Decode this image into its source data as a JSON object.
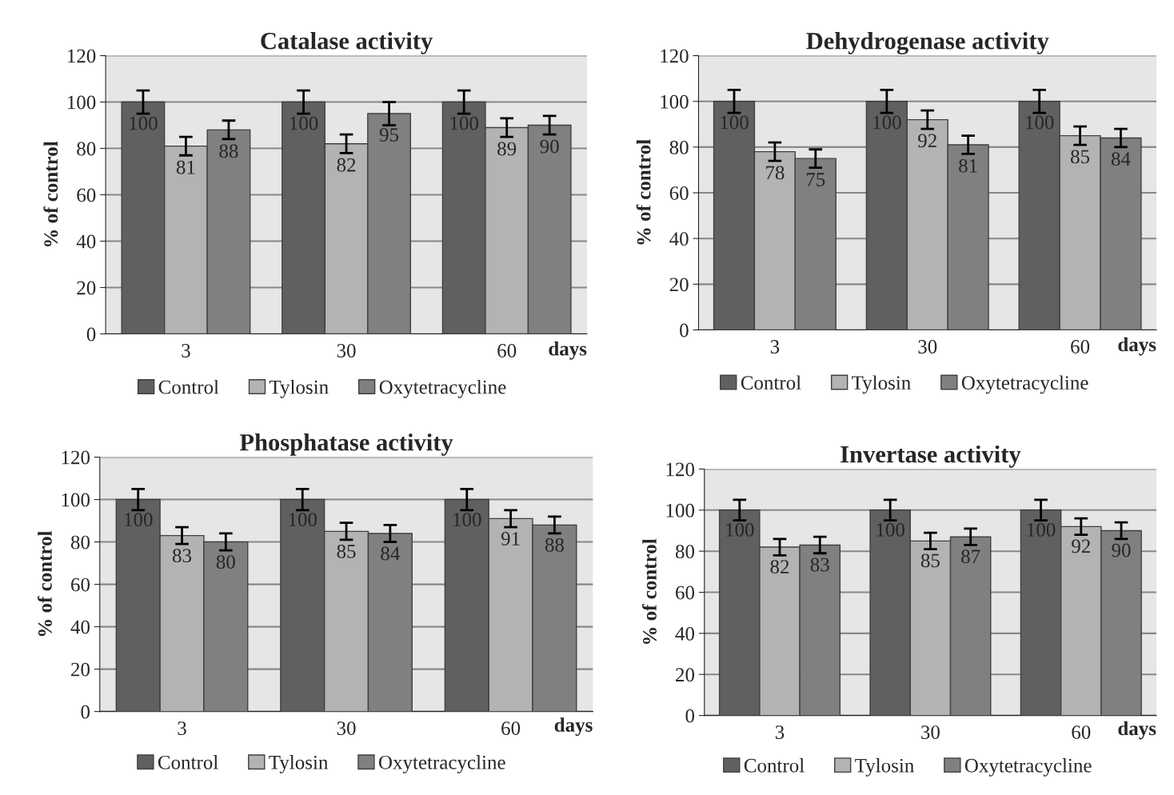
{
  "chart_data": [
    {
      "type": "bar",
      "title": "Catalase activity",
      "xlabel": "days",
      "ylabel": "% of control",
      "categories": [
        "3",
        "30",
        "60"
      ],
      "ylim": [
        0,
        120
      ],
      "yticks": [
        0,
        20,
        40,
        60,
        80,
        100,
        120
      ],
      "grid": "y",
      "legend": "bottom",
      "data_labels": true,
      "series": [
        {
          "name": "Control",
          "color": "#606060",
          "values": [
            100,
            100,
            100
          ],
          "errors": [
            5,
            5,
            5
          ]
        },
        {
          "name": "Tylosin",
          "color": "#b3b3b3",
          "values": [
            81,
            82,
            89
          ],
          "errors": [
            4,
            4,
            4
          ]
        },
        {
          "name": "Oxytetracycline",
          "color": "#808080",
          "values": [
            88,
            95,
            90
          ],
          "errors": [
            4,
            5,
            4
          ]
        }
      ]
    },
    {
      "type": "bar",
      "title": "Dehydrogenase activity",
      "xlabel": "days",
      "ylabel": "% of control",
      "categories": [
        "3",
        "30",
        "60"
      ],
      "ylim": [
        0,
        120
      ],
      "yticks": [
        0,
        20,
        40,
        60,
        80,
        100,
        120
      ],
      "grid": "y",
      "legend": "bottom",
      "data_labels": true,
      "series": [
        {
          "name": "Control",
          "color": "#606060",
          "values": [
            100,
            100,
            100
          ],
          "errors": [
            5,
            5,
            5
          ]
        },
        {
          "name": "Tylosin",
          "color": "#b3b3b3",
          "values": [
            78,
            92,
            85
          ],
          "errors": [
            4,
            4,
            4
          ]
        },
        {
          "name": "Oxytetracycline",
          "color": "#808080",
          "values": [
            75,
            81,
            84
          ],
          "errors": [
            4,
            4,
            4
          ]
        }
      ]
    },
    {
      "type": "bar",
      "title": "Phosphatase activity",
      "xlabel": "days",
      "ylabel": "% of control",
      "categories": [
        "3",
        "30",
        "60"
      ],
      "ylim": [
        0,
        120
      ],
      "yticks": [
        0,
        20,
        40,
        60,
        80,
        100,
        120
      ],
      "grid": "y",
      "legend": "bottom",
      "data_labels": true,
      "series": [
        {
          "name": "Control",
          "color": "#606060",
          "values": [
            100,
            100,
            100
          ],
          "errors": [
            5,
            5,
            5
          ]
        },
        {
          "name": "Tylosin",
          "color": "#b3b3b3",
          "values": [
            83,
            85,
            91
          ],
          "errors": [
            4,
            4,
            4
          ]
        },
        {
          "name": "Oxytetracycline",
          "color": "#808080",
          "values": [
            80,
            84,
            88
          ],
          "errors": [
            4,
            4,
            4
          ]
        }
      ]
    },
    {
      "type": "bar",
      "title": "Invertase activity",
      "xlabel": "days",
      "ylabel": "% of control",
      "categories": [
        "3",
        "30",
        "60"
      ],
      "ylim": [
        0,
        120
      ],
      "yticks": [
        0,
        20,
        40,
        60,
        80,
        100,
        120
      ],
      "grid": "y",
      "legend": "bottom",
      "data_labels": true,
      "series": [
        {
          "name": "Control",
          "color": "#606060",
          "values": [
            100,
            100,
            100
          ],
          "errors": [
            5,
            5,
            5
          ]
        },
        {
          "name": "Tylosin",
          "color": "#b3b3b3",
          "values": [
            82,
            85,
            92
          ],
          "errors": [
            4,
            4,
            4
          ]
        },
        {
          "name": "Oxytetracycline",
          "color": "#808080",
          "values": [
            83,
            87,
            90
          ],
          "errors": [
            4,
            4,
            4
          ]
        }
      ]
    }
  ]
}
